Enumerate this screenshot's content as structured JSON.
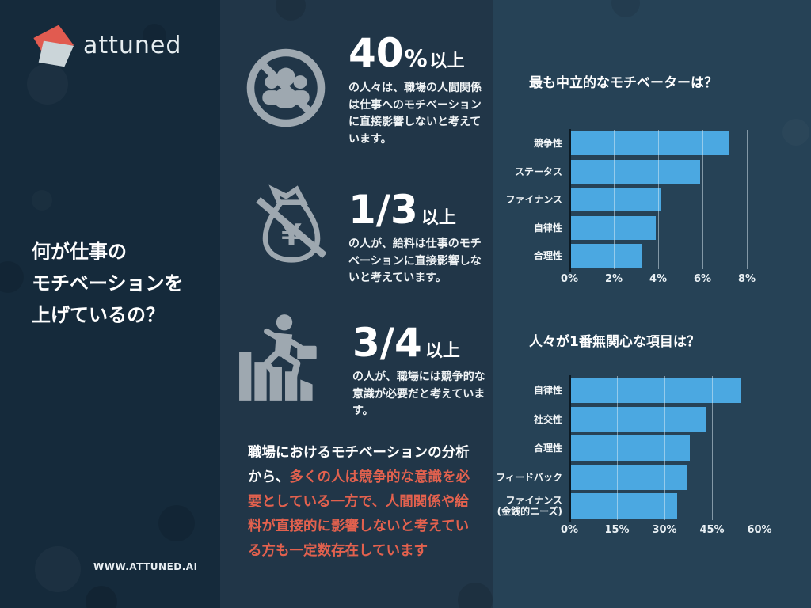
{
  "page": {
    "brand": {
      "logo_text": "attuned",
      "website": "WWW.ATTUNED.AI"
    },
    "sidebar": {
      "heading_lines": [
        "何が仕事の",
        "モチベーションを",
        "上げているの？"
      ]
    },
    "stats": [
      {
        "icon": "no-people-icon",
        "value": "40",
        "value_suffix": "%",
        "unit": "以上",
        "description": "の人々は、職場の人間関係は仕事へのモチベーションに直接影響しないと考えています。"
      },
      {
        "icon": "no-money-bag-icon",
        "value": "1/3",
        "value_suffix": "",
        "unit": "以上",
        "description": "の人が、給料は仕事のモチベーションに直接影響しないと考えています。"
      },
      {
        "icon": "man-climbing-bars-icon",
        "value": "3/4",
        "value_suffix": "",
        "unit": "以上",
        "description": "の人が、職場には競争的な意識が必要だと考えています。"
      }
    ],
    "summary": {
      "normal_text": "職場におけるモチベーションの分析から、",
      "highlight_text": "多くの人は競争的な意識を必要としている一方で、人間関係や給料が直接的に影響しないと考えている方も一定数存在しています",
      "highlight_color": "#E2614E"
    },
    "colors": {
      "left_bg": "#152A3B",
      "middle_bg": "#213648",
      "right_bg": "#264256",
      "accent_red": "#E2614E",
      "bar_blue": "#4BA8E1",
      "icon_gray": "#9EA8B0",
      "logo_coral": "#E15B50",
      "logo_gray": "#CBD5D9"
    }
  },
  "chart_data": [
    {
      "type": "bar",
      "orientation": "horizontal",
      "title": "最も中立的なモチベーターは？",
      "categories": [
        "競争性",
        "ステータス",
        "ファイナンス",
        "自律性",
        "合理性"
      ],
      "values": [
        7.2,
        5.9,
        4.1,
        3.9,
        3.3
      ],
      "x_ticks": [
        "0%",
        "2%",
        "4%",
        "6%",
        "8%"
      ],
      "xlim": [
        0,
        8
      ],
      "xlabel": "",
      "ylabel": "",
      "grid": true,
      "bar_color": "#4BA8E1"
    },
    {
      "type": "bar",
      "orientation": "horizontal",
      "title": "人々が1番無関心な項目は？",
      "categories": [
        "自律性",
        "社交性",
        "合理性",
        "フィードバック",
        "ファイナンス\n(金銭的ニーズ)"
      ],
      "values": [
        54,
        43,
        38,
        37,
        34
      ],
      "x_ticks": [
        "0%",
        "15%",
        "30%",
        "45%",
        "60%"
      ],
      "xlim": [
        0,
        60
      ],
      "xlabel": "",
      "ylabel": "",
      "grid": true,
      "bar_color": "#4BA8E1"
    }
  ]
}
